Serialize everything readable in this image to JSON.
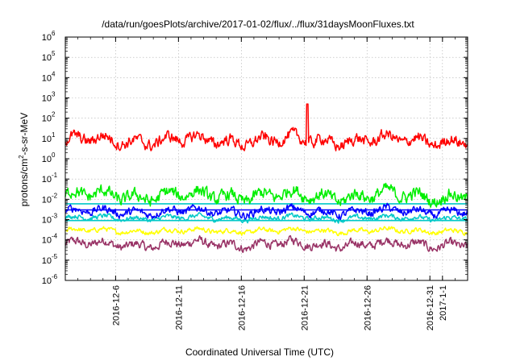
{
  "chart_data": {
    "type": "line",
    "title": "/data/run/goesPlots/archive/2017-01-02/flux/../flux/31daysMoonFluxes.txt",
    "xlabel": "Coordinated Universal Time (UTC)",
    "ylabel": "protons/cm²-s-sr-MeV",
    "yscale": "log",
    "ylim": [
      1e-06,
      1000000.0
    ],
    "xlim": [
      "2016-12-02",
      "2017-01-03"
    ],
    "grid": true,
    "x_ticks": [
      "2016-12-6",
      "2016-12-11",
      "2016-12-16",
      "2016-12-21",
      "2016-12-26",
      "2016-12-31",
      "2017-1-1"
    ],
    "y_ticks": [
      {
        "base": "10",
        "exp": "-6"
      },
      {
        "base": "10",
        "exp": "-5"
      },
      {
        "base": "10",
        "exp": "-4"
      },
      {
        "base": "10",
        "exp": "-3"
      },
      {
        "base": "10",
        "exp": "-2"
      },
      {
        "base": "10",
        "exp": "-1"
      },
      {
        "base": "10",
        "exp": "0"
      },
      {
        "base": "10",
        "exp": "1"
      },
      {
        "base": "10",
        "exp": "2"
      },
      {
        "base": "10",
        "exp": "3"
      },
      {
        "base": "10",
        "exp": "4"
      },
      {
        "base": "10",
        "exp": "5"
      },
      {
        "base": "10",
        "exp": "6"
      }
    ],
    "series": [
      {
        "color": "#ff0000",
        "level": 8,
        "noise": 3.2,
        "x": [
          "2016-12-21 06:00"
        ],
        "spike": 500
      },
      {
        "color": "#00ee00",
        "level": 0.015,
        "noise": 3.5
      },
      {
        "color": "#0000ff",
        "level": 0.0025,
        "noise": 2.2
      },
      {
        "color": "#00c8c8",
        "level": 0.0012,
        "noise": 1.6
      },
      {
        "color": "#ffff00",
        "level": 0.00028,
        "noise": 1.6
      },
      {
        "color": "#993366",
        "level": 6e-05,
        "noise": 2.4
      }
    ],
    "reference_lines": [
      {
        "color": "#00c8c8",
        "y": 0.006
      },
      {
        "color": "#0000ff",
        "y": 0.003
      },
      {
        "color": "#00c8c8",
        "y": 0.0009
      }
    ]
  }
}
